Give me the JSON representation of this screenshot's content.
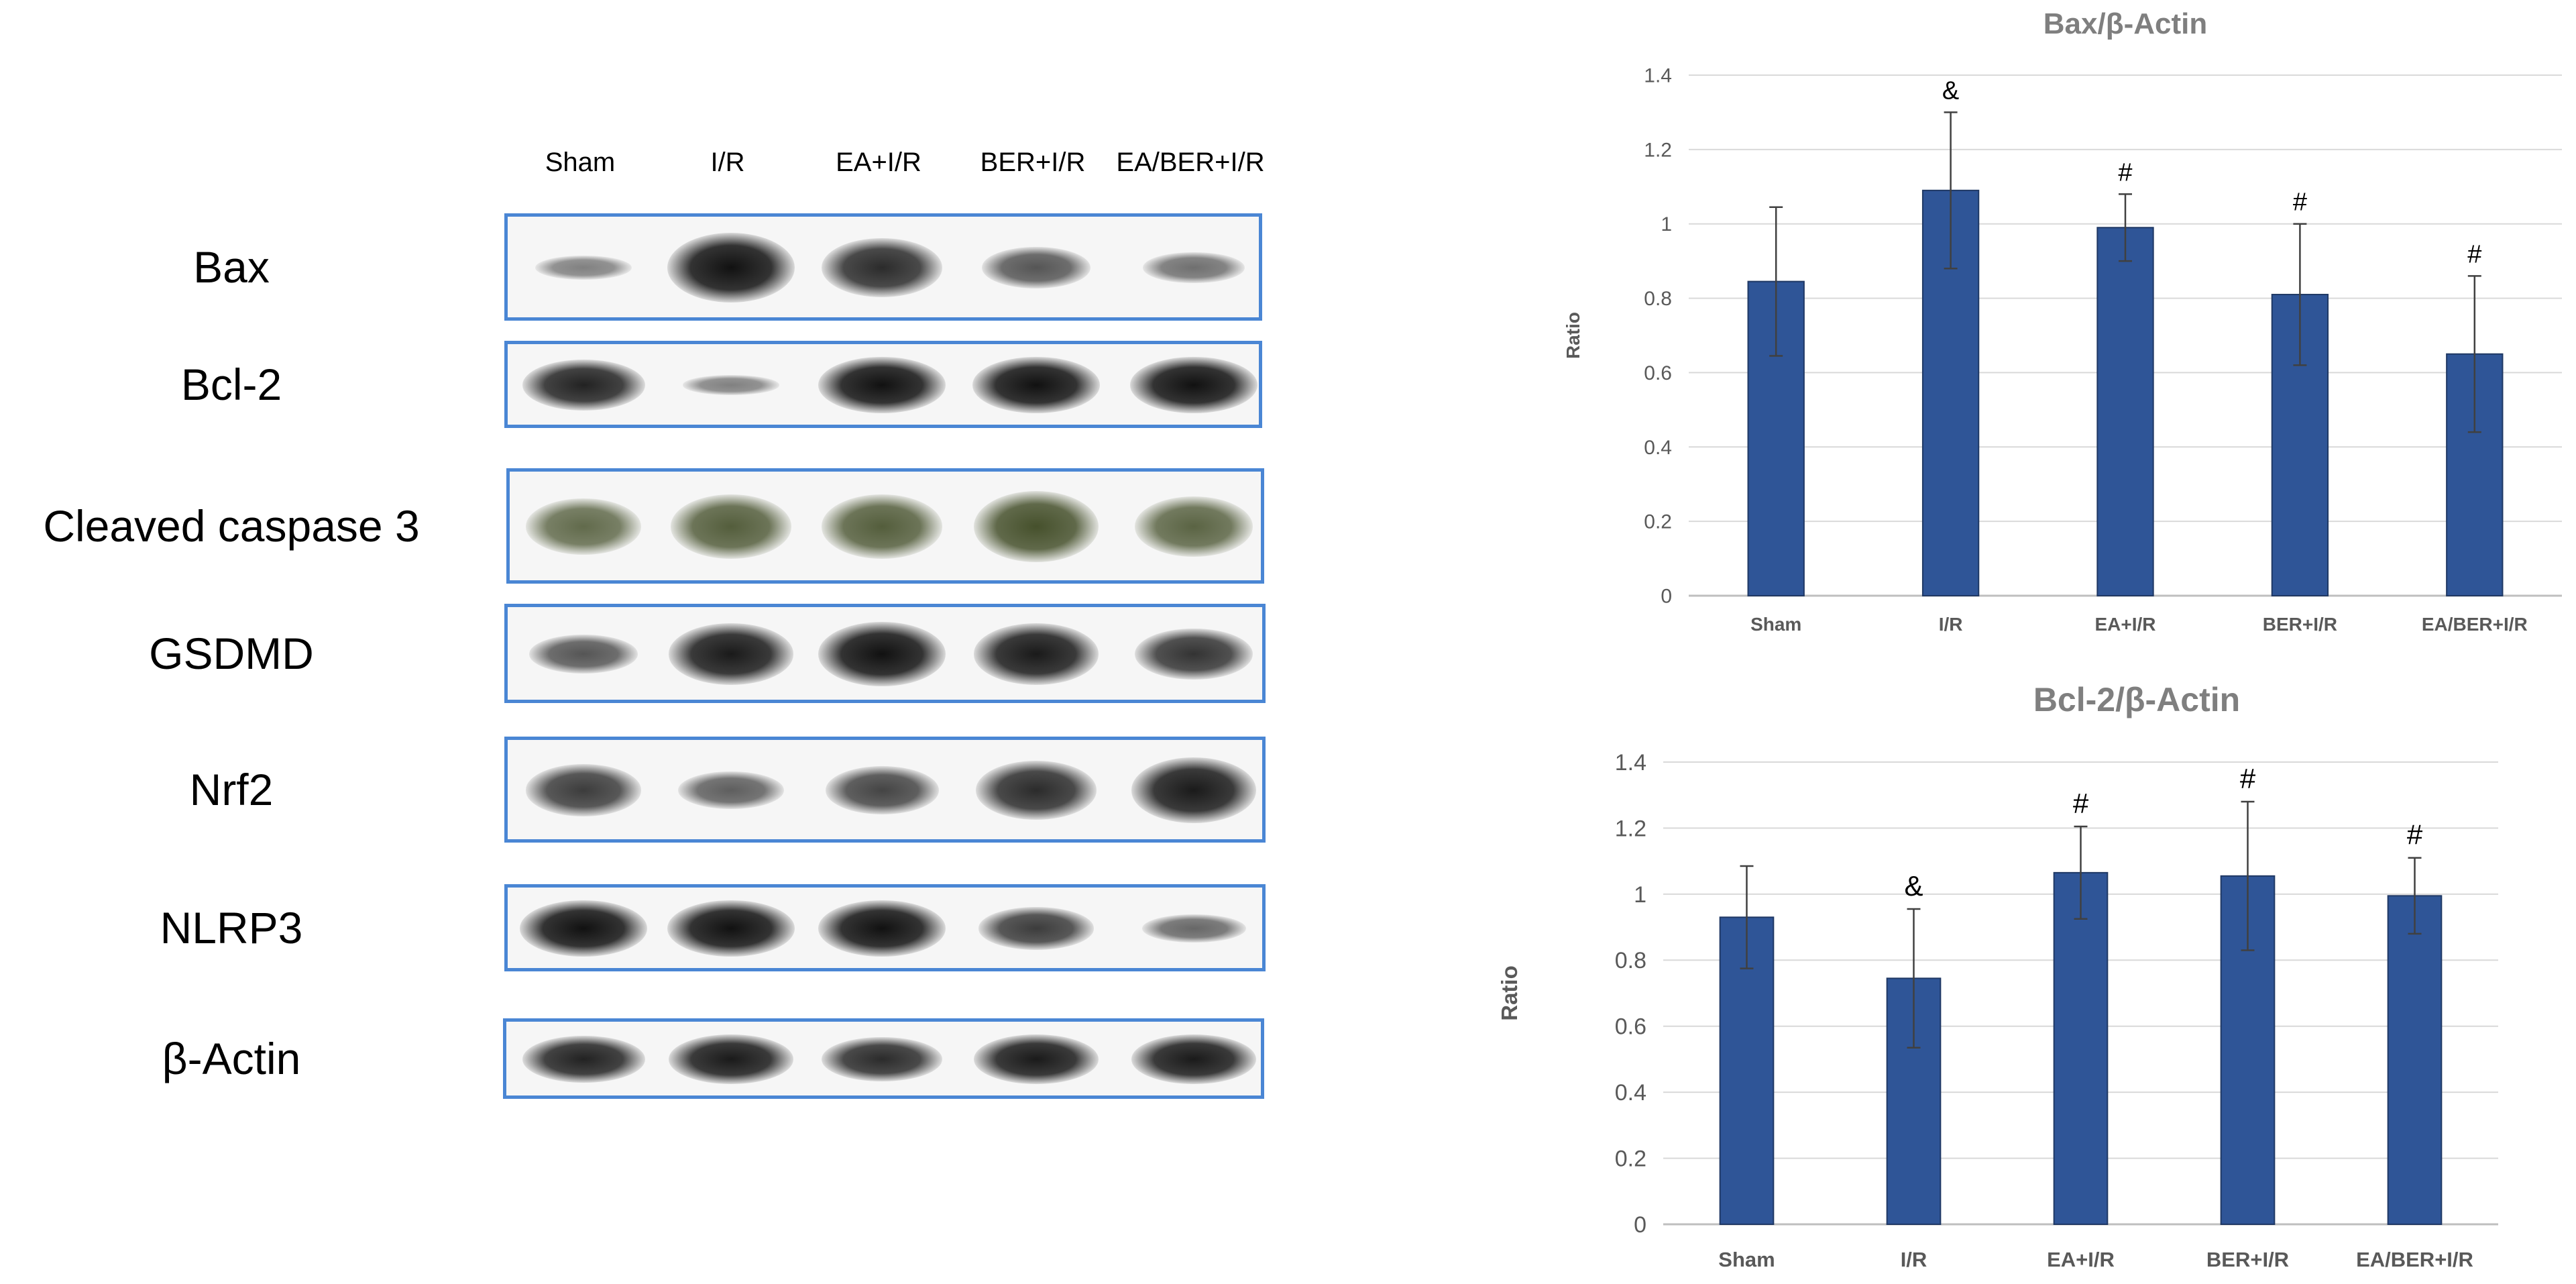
{
  "blot": {
    "lanes": [
      "Sham",
      "I/R",
      "EA+I/R",
      "BER+I/R",
      "EA/BER+I/R"
    ],
    "proteins": [
      "Bax",
      "Bcl-2",
      "Cleaved caspase 3",
      "GSDMD",
      "Nrf2",
      "NLRP3",
      "β-Actin"
    ],
    "band_intensity": [
      [
        0.35,
        1.0,
        0.85,
        0.6,
        0.45
      ],
      [
        0.9,
        0.35,
        1.0,
        1.0,
        1.0
      ],
      [
        0.75,
        0.85,
        0.85,
        0.95,
        0.8
      ],
      [
        0.6,
        0.95,
        1.0,
        0.95,
        0.8
      ],
      [
        0.75,
        0.55,
        0.7,
        0.85,
        0.95
      ],
      [
        1.0,
        1.0,
        1.0,
        0.75,
        0.5
      ],
      [
        0.9,
        0.95,
        0.85,
        0.95,
        0.95
      ]
    ]
  },
  "colors": {
    "bar": "#2f5597",
    "bar_edge": "#1f3864",
    "blot_border": "#4a86d4",
    "band_green": "#3f4a24",
    "band_black": "#111111"
  },
  "chart_data": [
    {
      "type": "bar",
      "title": "Bax/β-Actin",
      "ylabel": "Ratio",
      "xlabel": "",
      "categories": [
        "Sham",
        "I/R",
        "EA+I/R",
        "BER+I/R",
        "EA/BER+I/R"
      ],
      "values": [
        0.845,
        1.09,
        0.99,
        0.81,
        0.65
      ],
      "errors": [
        0.2,
        0.21,
        0.09,
        0.19,
        0.21
      ],
      "annotations": [
        "",
        "&",
        "#",
        "#",
        "#"
      ],
      "ylim": [
        0,
        1.4
      ],
      "yticks": [
        "0",
        "0.2",
        "0.4",
        "0.6",
        "0.8",
        "1",
        "1.2",
        "1.4"
      ],
      "grid": true,
      "legend": "none"
    },
    {
      "type": "bar",
      "title": "Bcl-2/β-Actin",
      "ylabel": "Ratio",
      "xlabel": "",
      "categories": [
        "Sham",
        "I/R",
        "EA+I/R",
        "BER+I/R",
        "EA/BER+I/R"
      ],
      "values": [
        0.93,
        0.745,
        1.065,
        1.055,
        0.995
      ],
      "errors": [
        0.155,
        0.21,
        0.14,
        0.225,
        0.115
      ],
      "annotations": [
        "",
        "&",
        "#",
        "#",
        "#"
      ],
      "ylim": [
        0,
        1.4
      ],
      "yticks": [
        "0",
        "0.2",
        "0.4",
        "0.6",
        "0.8",
        "1",
        "1.2",
        "1.4"
      ],
      "grid": true,
      "legend": "none"
    }
  ]
}
